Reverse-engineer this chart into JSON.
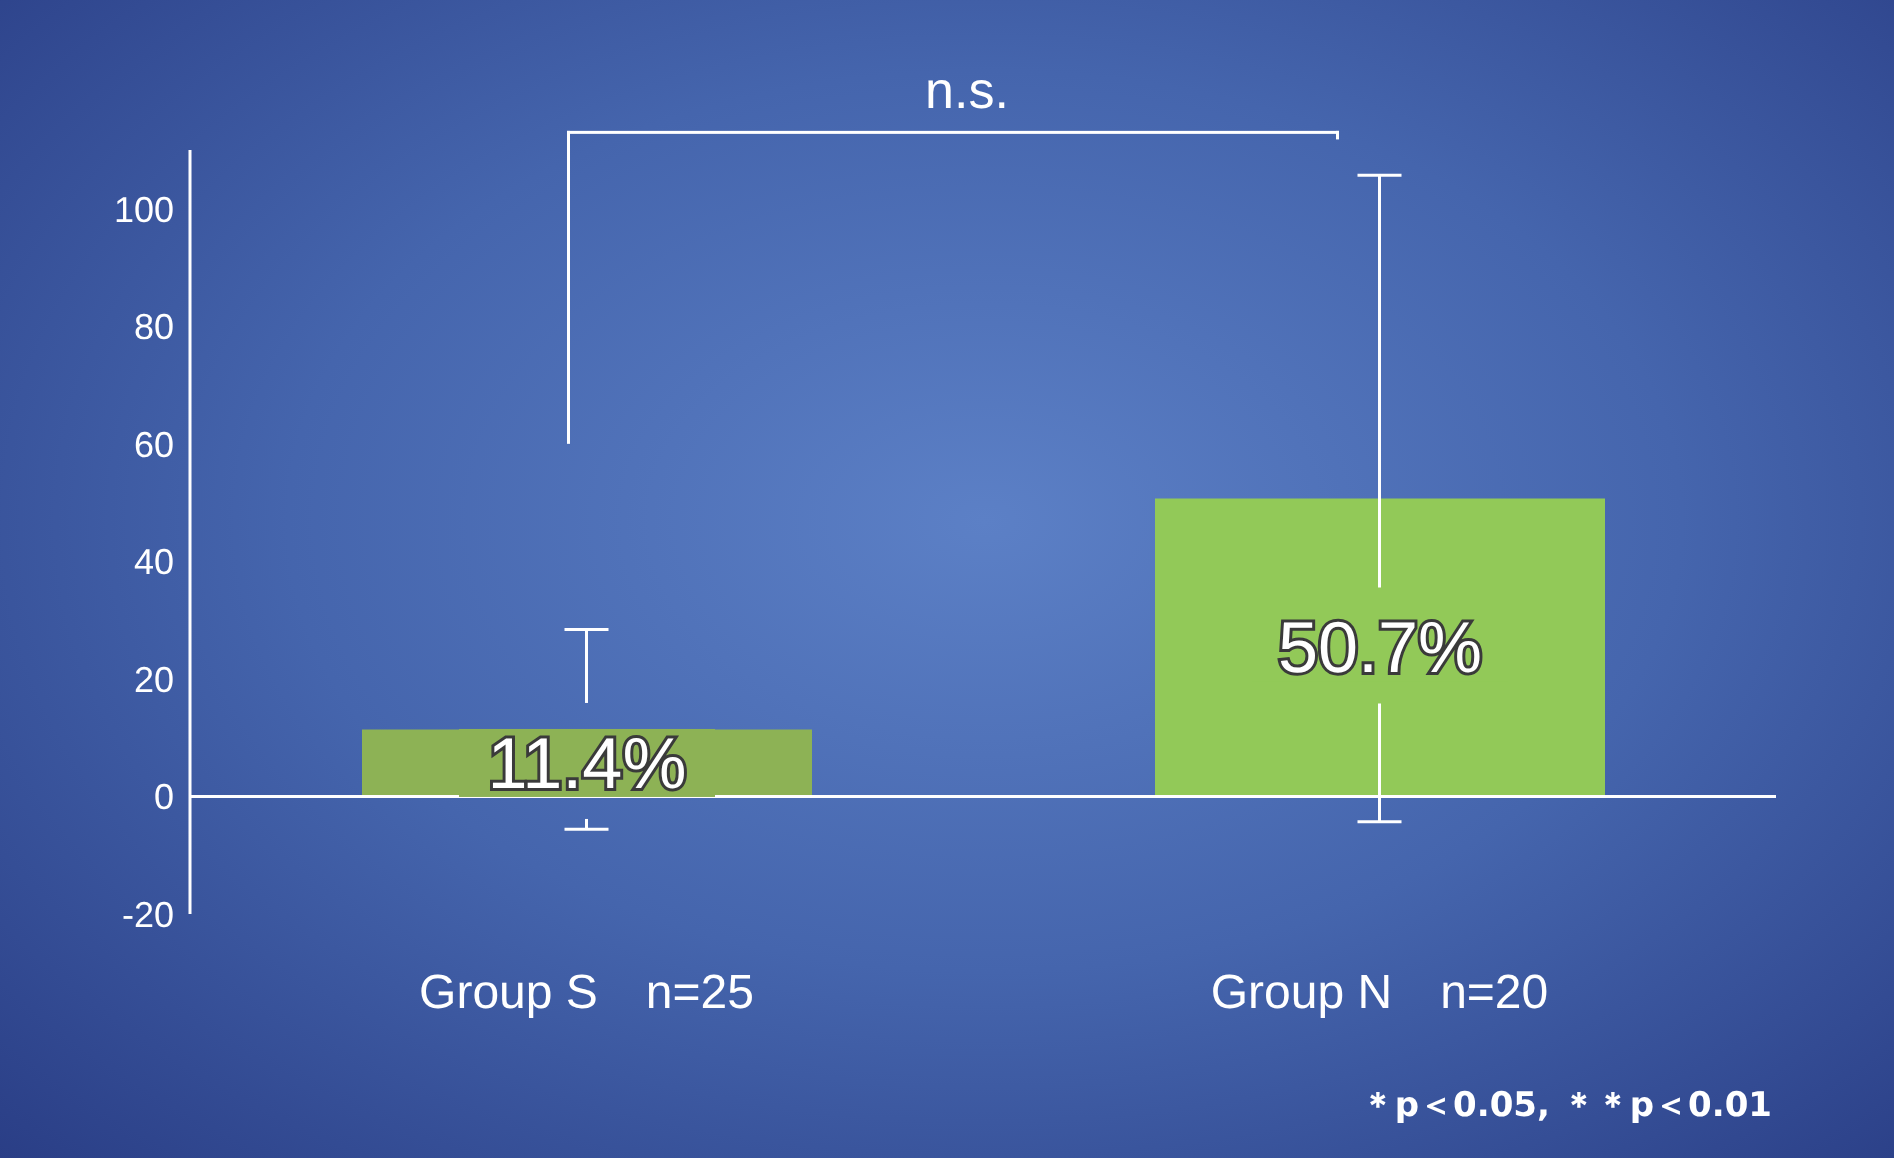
{
  "chart_data": {
    "type": "bar",
    "categories": [
      "Group S　n=25",
      "Group N　n=20"
    ],
    "values": [
      11.4,
      50.7
    ],
    "colors": [
      "#8db255",
      "#92c958"
    ],
    "errors": [
      17,
      55
    ],
    "value_labels": [
      "11.4%",
      "50.7%"
    ],
    "ylim": [
      -20,
      110
    ],
    "yticks": [
      -20,
      0,
      20,
      40,
      60,
      80,
      100
    ],
    "ref_lines": [
      {
        "axis": "y",
        "value": 0,
        "color": "#ffffff"
      }
    ],
    "grid": false,
    "legend": false,
    "annotations": [
      "n.s.",
      "＊p＜0.05, ＊＊p＜0.01"
    ]
  }
}
